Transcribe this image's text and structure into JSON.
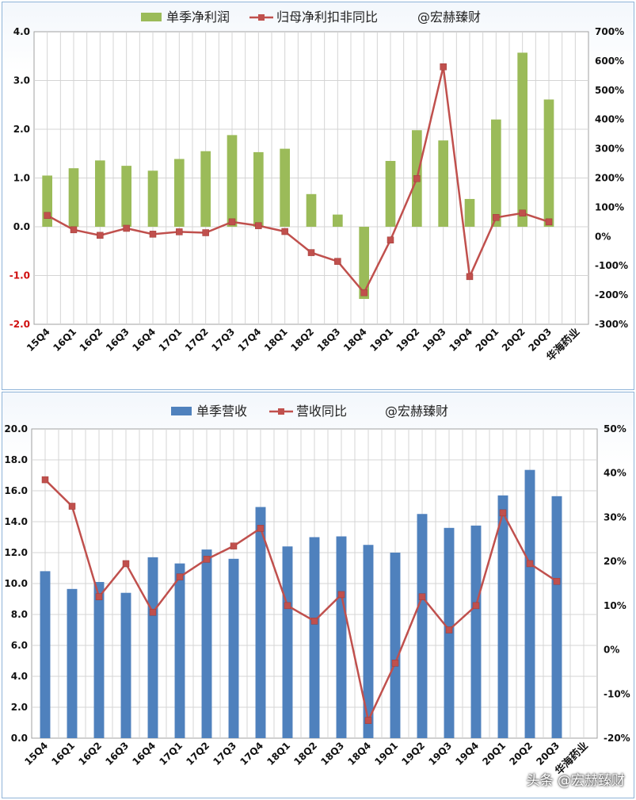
{
  "chart_data": [
    {
      "type": "bar",
      "legend": [
        "单季净利润",
        "归母净利扣非同比",
        "@宏赫臻财"
      ],
      "categories": [
        "15Q4",
        "16Q1",
        "16Q2",
        "16Q3",
        "16Q4",
        "17Q1",
        "17Q2",
        "17Q3",
        "17Q4",
        "18Q1",
        "18Q2",
        "18Q3",
        "18Q4",
        "19Q1",
        "19Q2",
        "19Q3",
        "19Q4",
        "20Q1",
        "20Q2",
        "20Q3"
      ],
      "extra_category_label": "华海药业",
      "series": [
        {
          "name": "单季净利润",
          "type": "bar",
          "axis": "left",
          "values": [
            1.05,
            1.2,
            1.36,
            1.25,
            1.15,
            1.39,
            1.55,
            1.88,
            1.53,
            1.6,
            0.67,
            0.25,
            -1.48,
            1.35,
            1.98,
            1.77,
            0.57,
            2.2,
            3.57,
            2.61
          ]
        },
        {
          "name": "归母净利扣非同比",
          "type": "line",
          "axis": "right",
          "values": [
            72,
            23,
            4,
            28,
            8,
            16,
            13,
            50,
            37,
            17,
            -55,
            -85,
            -192,
            -12,
            198,
            580,
            -137,
            65,
            80,
            50
          ]
        }
      ],
      "y_left": {
        "min": -2.0,
        "max": 4.0,
        "step": 1.0,
        "ticks": [
          "-2.0",
          "-1.0",
          "0.0",
          "1.0",
          "2.0",
          "3.0",
          "4.0"
        ]
      },
      "y_right": {
        "min": -300,
        "max": 700,
        "step": 100,
        "ticks": [
          "-300%",
          "-200%",
          "-100%",
          "0%",
          "100%",
          "200%",
          "300%",
          "400%",
          "500%",
          "600%",
          "700%"
        ]
      },
      "grid": true,
      "colors": {
        "bar": "#9bbb59",
        "line": "#c0504d",
        "negative_tick": "#d01010"
      }
    },
    {
      "type": "bar",
      "legend": [
        "单季营收",
        "营收同比",
        "@宏赫臻财"
      ],
      "categories": [
        "15Q4",
        "16Q1",
        "16Q2",
        "16Q3",
        "16Q4",
        "17Q1",
        "17Q2",
        "17Q3",
        "17Q4",
        "18Q1",
        "18Q2",
        "18Q3",
        "18Q4",
        "19Q1",
        "19Q2",
        "19Q3",
        "19Q4",
        "20Q1",
        "20Q2",
        "20Q3"
      ],
      "extra_category_label": "华海药业",
      "series": [
        {
          "name": "单季营收",
          "type": "bar",
          "axis": "left",
          "values": [
            10.8,
            9.65,
            10.1,
            9.4,
            11.7,
            11.3,
            12.2,
            11.6,
            14.95,
            12.4,
            13.0,
            13.05,
            12.5,
            12.0,
            14.5,
            13.6,
            13.75,
            15.7,
            17.35,
            15.65
          ]
        },
        {
          "name": "营收同比",
          "type": "line",
          "axis": "right",
          "values": [
            38.5,
            32.5,
            12.0,
            19.5,
            8.5,
            16.5,
            20.5,
            23.5,
            27.5,
            10.0,
            6.5,
            12.5,
            -16.0,
            -3.0,
            12.0,
            4.5,
            10.0,
            31.0,
            19.5,
            15.5
          ]
        }
      ],
      "y_left": {
        "min": 0,
        "max": 20,
        "step": 2,
        "ticks": [
          "0.0",
          "2.0",
          "4.0",
          "6.0",
          "8.0",
          "10.0",
          "12.0",
          "14.0",
          "16.0",
          "18.0",
          "20.0"
        ]
      },
      "y_right": {
        "min": -20,
        "max": 50,
        "step": 10,
        "ticks": [
          "-20%",
          "-10%",
          "0%",
          "10%",
          "20%",
          "30%",
          "40%",
          "50%"
        ]
      },
      "grid": true,
      "colors": {
        "bar": "#4f81bd",
        "line": "#c0504d"
      }
    }
  ],
  "watermark": "头条 @宏赫臻财"
}
